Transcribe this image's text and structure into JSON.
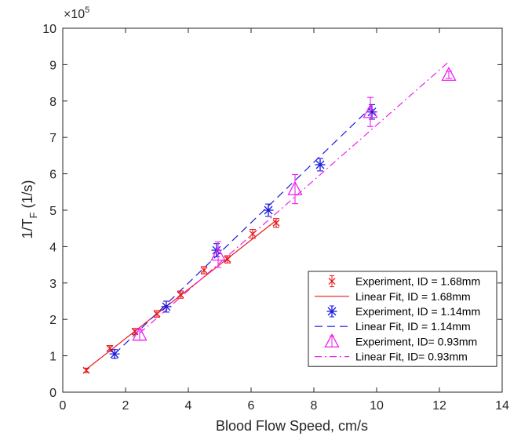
{
  "chart_data": {
    "type": "scatter",
    "xlabel": "Blood Flow Speed, cm/s",
    "ylabel_main": "1/T",
    "ylabel_sub": "F",
    "ylabel_unit": " (1/s)",
    "exponent_prefix": "×10",
    "exponent_power": "5",
    "xlim": [
      0,
      14
    ],
    "ylim": [
      0,
      10
    ],
    "xticks": [
      "0",
      "2",
      "4",
      "6",
      "8",
      "10",
      "12",
      "14"
    ],
    "yticks": [
      "0",
      "1",
      "2",
      "3",
      "4",
      "5",
      "6",
      "7",
      "8",
      "9",
      "10"
    ],
    "grid": false,
    "legend_position": "bottom-right",
    "series": [
      {
        "name": "Experiment, ID = 1.68mm",
        "kind": "errorbar",
        "marker": "x",
        "color": "#e8191a",
        "x": [
          0.75,
          1.5,
          2.3,
          3.0,
          3.75,
          4.5,
          5.25,
          6.05,
          6.8
        ],
        "y": [
          0.6,
          1.2,
          1.67,
          2.15,
          2.68,
          3.35,
          3.65,
          4.35,
          4.65
        ],
        "err": [
          0.06,
          0.08,
          0.08,
          0.09,
          0.1,
          0.1,
          0.1,
          0.12,
          0.12
        ]
      },
      {
        "name": "Linear Fit, ID = 1.68mm",
        "kind": "line",
        "dash": "solid",
        "color": "#e8191a",
        "x": [
          0.75,
          6.8
        ],
        "y": [
          0.63,
          4.72
        ]
      },
      {
        "name": "Experiment, ID = 1.14mm",
        "kind": "errorbar",
        "marker": "asterisk",
        "color": "#1a1adf",
        "x": [
          1.65,
          3.3,
          4.9,
          6.55,
          8.2,
          9.85
        ],
        "y": [
          1.05,
          2.35,
          3.9,
          5.0,
          6.25,
          7.7
        ],
        "err": [
          0.12,
          0.15,
          0.18,
          0.17,
          0.17,
          0.2
        ]
      },
      {
        "name": "Linear Fit, ID = 1.14mm",
        "kind": "line",
        "dash": "dashed",
        "color": "#1a1adf",
        "x": [
          1.65,
          9.85
        ],
        "y": [
          1.05,
          7.85
        ]
      },
      {
        "name": "Experiment, ID= 0.93mm",
        "kind": "errorbar",
        "marker": "triangle",
        "color": "#ee22ee",
        "x": [
          2.45,
          4.95,
          7.4,
          9.8,
          12.3
        ],
        "y": [
          1.58,
          3.78,
          5.58,
          7.7,
          8.72
        ],
        "err": [
          0.15,
          0.35,
          0.4,
          0.4,
          0.1
        ]
      },
      {
        "name": "Linear Fit, ID= 0.93mm",
        "kind": "line",
        "dash": "dashdot",
        "color": "#ee22ee",
        "x": [
          2.45,
          12.3
        ],
        "y": [
          1.62,
          9.08
        ]
      }
    ]
  }
}
